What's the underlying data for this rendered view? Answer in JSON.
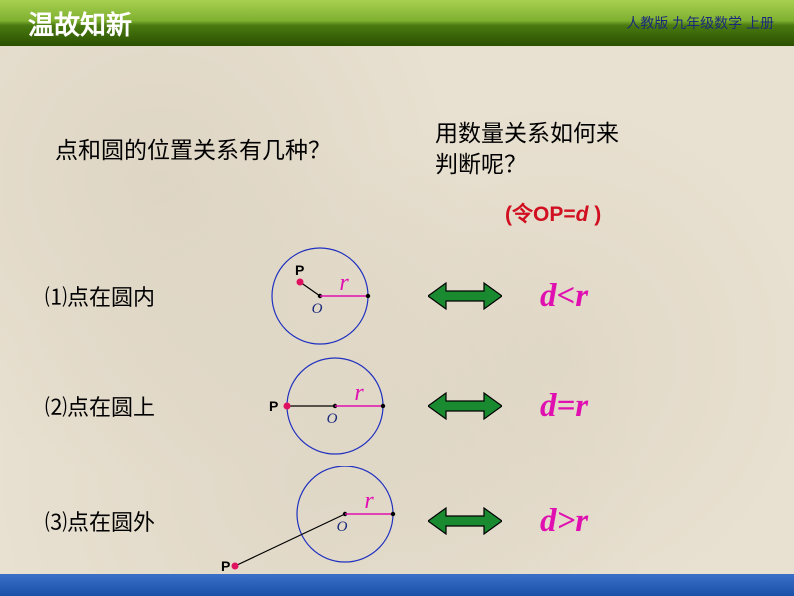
{
  "header": {
    "title": "温故知新",
    "right": "人教版 九年级数学 上册"
  },
  "questions": {
    "left": "点和圆的位置关系有几种？",
    "right": "用数量关系如何来\n判断呢？",
    "op_note_prefix": "(令OP=",
    "op_note_var": "d",
    "op_note_suffix": " )"
  },
  "rows": [
    {
      "label": "⑴点在圆内",
      "formula": "d<r"
    },
    {
      "label": "⑵点在圆上",
      "formula": "d=r"
    },
    {
      "label": "⑶点在圆外",
      "formula": "d>r"
    }
  ],
  "diagram": {
    "circle_stroke": "#2030c0",
    "circle_r": 48,
    "r_label": "r",
    "r_color": "#e010b0",
    "o_label": "O",
    "o_color": "#1a2a7a",
    "p_label": "P",
    "p_color": "#000000",
    "p_dot_color": "#e01060",
    "center_dot_color": "#000",
    "radius_line_color": "#e010b0",
    "op_line_color": "#000"
  },
  "arrow": {
    "fill": "#1a8a30",
    "stroke": "#000",
    "width": 74,
    "height": 28
  },
  "layout": {
    "row_tops": [
      195,
      305,
      420
    ]
  }
}
